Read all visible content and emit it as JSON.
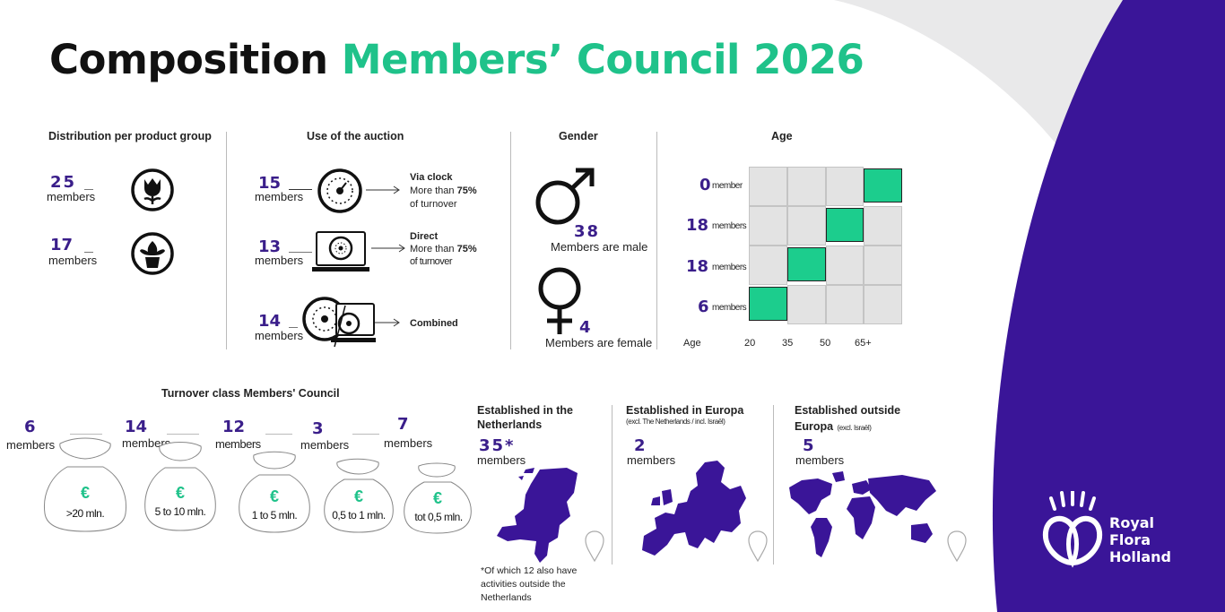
{
  "title": {
    "part1": "Composition",
    "part2": "Members’ Council 2026"
  },
  "product_group": {
    "heading": "Distribution per product group",
    "items": [
      {
        "count": "25",
        "unit": "members",
        "icon": "tulip-icon"
      },
      {
        "count": "17",
        "unit": "members",
        "icon": "potted-plant-icon"
      }
    ]
  },
  "auction": {
    "heading": "Use of the auction",
    "items": [
      {
        "count": "15",
        "unit": "members",
        "name": "Via clock",
        "desc1": "More than ",
        "pct": "75%",
        "desc2": "of turnover"
      },
      {
        "count": "13",
        "unit": "members",
        "name": "Direct",
        "desc1": "More than ",
        "pct": "75%",
        "desc2": "of turnover"
      },
      {
        "count": "14",
        "unit": "members",
        "name": "Combined"
      }
    ]
  },
  "gender": {
    "heading": "Gender",
    "male": {
      "count": "38",
      "label": "Members are male"
    },
    "female": {
      "count": "4",
      "label": "Members are female"
    }
  },
  "age": {
    "heading": "Age",
    "axis_label": "Age",
    "ticks": [
      "20",
      "35",
      "50",
      "65+"
    ],
    "rows": [
      {
        "count": "0",
        "unit": "member"
      },
      {
        "count": "18",
        "unit": "members"
      },
      {
        "count": "18",
        "unit": "members"
      },
      {
        "count": "6",
        "unit": "members"
      }
    ]
  },
  "turnover": {
    "heading": "Turnover class Members' Council",
    "currency": "€",
    "classes": [
      {
        "count": "6",
        "unit": "members",
        "label": ">20 mln."
      },
      {
        "count": "14",
        "unit": "members",
        "label": "5 to 10 mln."
      },
      {
        "count": "12",
        "unit": "members",
        "label": "1 to 5 mln."
      },
      {
        "count": "3",
        "unit": "members",
        "label": "0,5 to 1 mln."
      },
      {
        "count": "7",
        "unit": "members",
        "label": "tot 0,5 mln."
      }
    ]
  },
  "established": {
    "netherlands": {
      "heading1": "Established in the",
      "heading2": "Netherlands",
      "count": "35*",
      "unit": "members",
      "footnote": [
        "*Of which 12 also have",
        "activities outside the",
        "Netherlands"
      ]
    },
    "europe": {
      "heading": "Established in Europa",
      "sub": "(excl. The Netherlands / incl. Israël)",
      "count": "2",
      "unit": "members"
    },
    "outside": {
      "heading1": "Established outside",
      "heading2": "Europa",
      "sub": "(excl. Israël)",
      "count": "5",
      "unit": "members"
    }
  },
  "brand": {
    "line1": "Royal",
    "line2": "Flora",
    "line3": "Holland"
  },
  "colors": {
    "accent": "#1fc28a",
    "purple": "#3a1598",
    "number": "#3a1e8a"
  }
}
